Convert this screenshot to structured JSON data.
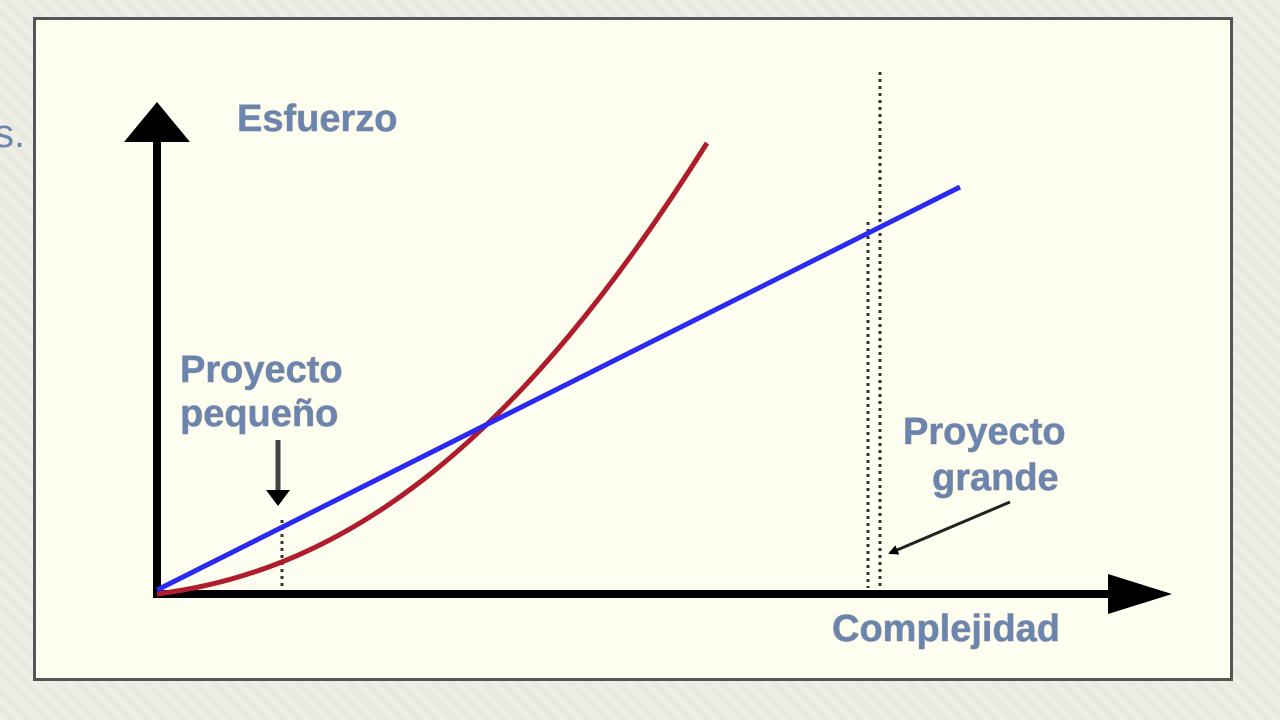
{
  "page": {
    "edge_text": "s."
  },
  "diagram": {
    "y_axis_label": "Esfuerzo",
    "x_axis_label": "Complejidad",
    "small_project_label": [
      "Proyecto",
      "pequeño"
    ],
    "large_project_label": [
      "Proyecto",
      "grande"
    ],
    "colors": {
      "axis": "#000000",
      "linear_curve": "#2a2af0",
      "exponential_curve": "#b01c2c",
      "label_text": "#6a86b0",
      "frame_background": "#fdfdf0"
    }
  }
}
